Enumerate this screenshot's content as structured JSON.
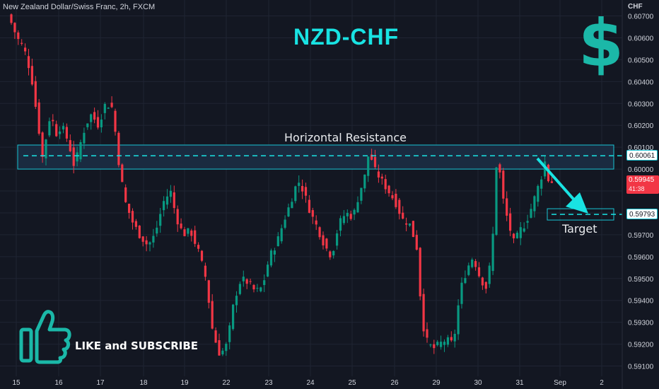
{
  "header": {
    "symbol": "New Zealand Dollar/Swiss Franc, 2h, FXCM"
  },
  "title": "NZD-CHF",
  "logo_glyph": "$",
  "annotations": {
    "resistance_label": "Horizontal Resistance",
    "target_label": "Target",
    "cta": "LIKE and SUBSCRIBE"
  },
  "axis": {
    "currency": "CHF",
    "price_ticks": [
      "0.60700",
      "0.60600",
      "0.60500",
      "0.60400",
      "0.60300",
      "0.60200",
      "0.60100",
      "0.60000",
      "0.59900",
      "0.59800",
      "0.59700",
      "0.59600",
      "0.59500",
      "0.59400",
      "0.59300",
      "0.59200",
      "0.59100"
    ],
    "time_ticks": [
      "15",
      "16",
      "17",
      "18",
      "19",
      "22",
      "23",
      "24",
      "25",
      "26",
      "29",
      "30",
      "31",
      "Sep",
      "2"
    ]
  },
  "price_labels": {
    "resistance": "0.60061",
    "target": "0.59793",
    "current": "0.59945",
    "countdown": "41:38"
  },
  "colors": {
    "up": "#089981",
    "down": "#f23645",
    "accent": "#19e3e3",
    "zone": "#1a2b40",
    "background": "#131722"
  },
  "chart_data": {
    "type": "candlestick",
    "instrument": "NZD/CHF",
    "timeframe": "2h",
    "y_range": [
      0.5906,
      0.6073
    ],
    "resistance_zone": [
      0.6,
      0.6011
    ],
    "resistance_level": 0.60061,
    "target_level": 0.59793,
    "current_price": 0.59945,
    "price_series": [
      [
        0,
        0.6072
      ],
      [
        8,
        0.6066
      ],
      [
        15,
        0.606
      ],
      [
        25,
        0.6055
      ],
      [
        35,
        0.6043
      ],
      [
        45,
        0.602
      ],
      [
        52,
        0.6003
      ],
      [
        58,
        0.602
      ],
      [
        63,
        0.6025
      ],
      [
        70,
        0.6016
      ],
      [
        78,
        0.602
      ],
      [
        88,
        0.6012
      ],
      [
        96,
        0.6001
      ],
      [
        103,
        0.601
      ],
      [
        112,
        0.602
      ],
      [
        120,
        0.6025
      ],
      [
        130,
        0.602
      ],
      [
        140,
        0.603
      ],
      [
        150,
        0.6028
      ],
      [
        160,
        0.6
      ],
      [
        168,
        0.5985
      ],
      [
        178,
        0.5976
      ],
      [
        188,
        0.597
      ],
      [
        200,
        0.5965
      ],
      [
        210,
        0.597
      ],
      [
        222,
        0.5985
      ],
      [
        232,
        0.599
      ],
      [
        240,
        0.5978
      ],
      [
        250,
        0.597
      ],
      [
        260,
        0.5972
      ],
      [
        272,
        0.5962
      ],
      [
        282,
        0.595
      ],
      [
        292,
        0.5925
      ],
      [
        302,
        0.5915
      ],
      [
        312,
        0.592
      ],
      [
        322,
        0.594
      ],
      [
        332,
        0.595
      ],
      [
        342,
        0.5948
      ],
      [
        352,
        0.5944
      ],
      [
        362,
        0.5946
      ],
      [
        372,
        0.596
      ],
      [
        382,
        0.5966
      ],
      [
        392,
        0.5976
      ],
      [
        402,
        0.5985
      ],
      [
        412,
        0.5995
      ],
      [
        420,
        0.599
      ],
      [
        430,
        0.598
      ],
      [
        440,
        0.5973
      ],
      [
        450,
        0.5965
      ],
      [
        460,
        0.596
      ],
      [
        470,
        0.5975
      ],
      [
        480,
        0.598
      ],
      [
        490,
        0.5978
      ],
      [
        500,
        0.599
      ],
      [
        508,
        0.5998
      ],
      [
        513,
        0.6009
      ],
      [
        520,
        0.6
      ],
      [
        530,
        0.5995
      ],
      [
        540,
        0.599
      ],
      [
        550,
        0.5985
      ],
      [
        560,
        0.5977
      ],
      [
        570,
        0.5975
      ],
      [
        580,
        0.5965
      ],
      [
        588,
        0.593
      ],
      [
        596,
        0.592
      ],
      [
        604,
        0.5918
      ],
      [
        612,
        0.592
      ],
      [
        622,
        0.5922
      ],
      [
        632,
        0.592
      ],
      [
        642,
        0.5945
      ],
      [
        652,
        0.5955
      ],
      [
        660,
        0.596
      ],
      [
        670,
        0.595
      ],
      [
        680,
        0.5945
      ],
      [
        688,
        0.597
      ],
      [
        692,
        0.6002
      ],
      [
        697,
        0.6
      ],
      [
        703,
        0.5985
      ],
      [
        710,
        0.5975
      ],
      [
        718,
        0.5966
      ],
      [
        726,
        0.5972
      ],
      [
        734,
        0.5975
      ],
      [
        742,
        0.5982
      ],
      [
        750,
        0.599
      ],
      [
        757,
        0.5997
      ],
      [
        762,
        0.6004
      ],
      [
        767,
        0.5994
      ]
    ]
  }
}
